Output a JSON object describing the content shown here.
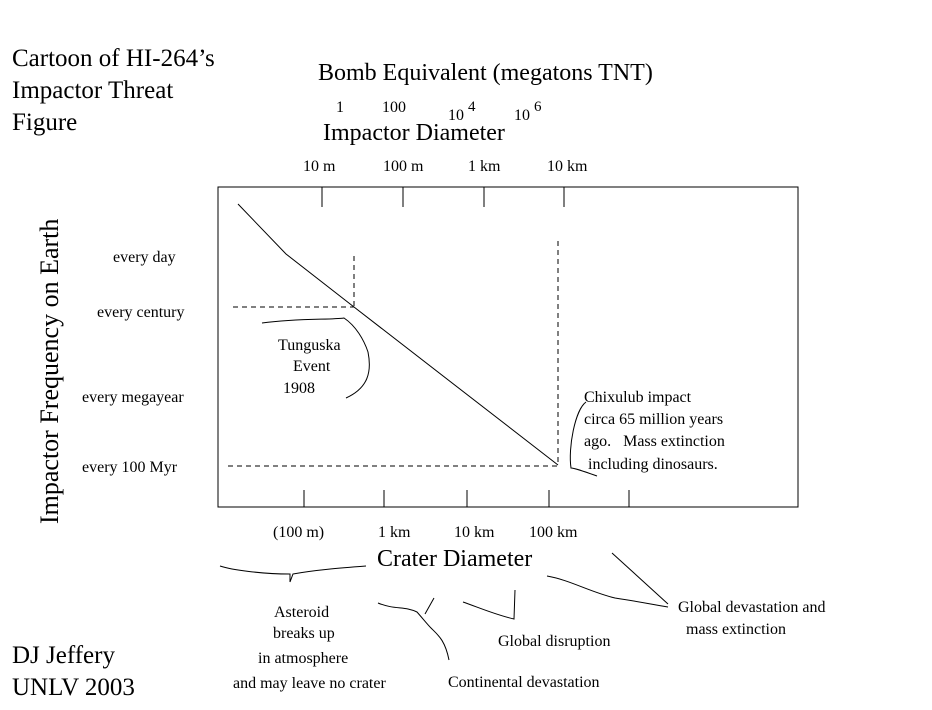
{
  "header": {
    "title_lines": [
      "Cartoon of HI-264’s",
      "Impactor Threat",
      "Figure"
    ]
  },
  "credit": {
    "line1": "DJ Jeffery",
    "line2": "UNLV 2003"
  },
  "axes": {
    "bomb_label": "Bomb Equivalent (megatons TNT)",
    "bomb_ticks": [
      {
        "base": "1",
        "exp": ""
      },
      {
        "base": "100",
        "exp": ""
      },
      {
        "base": "10",
        "exp": "4"
      },
      {
        "base": "10",
        "exp": "6"
      }
    ],
    "impactor_label": "Impactor Diameter",
    "impactor_ticks": [
      "10 m",
      "100 m",
      "1 km",
      "10 km"
    ],
    "frequency_label": "Impactor Frequency on Earth",
    "frequency_ticks": [
      "every day",
      "every century",
      "every megayear",
      "every 100 Myr"
    ],
    "crater_label": "Crater Diameter",
    "crater_ticks": [
      "(100 m)",
      "1 km",
      "10 km",
      "100 km"
    ]
  },
  "annotations": {
    "tunguska": [
      "Tunguska",
      "Event",
      "1908"
    ],
    "chixulub": [
      "Chixulub impact",
      "circa 65 million years",
      "ago.   Mass extinction",
      " including dinosaurs."
    ],
    "asteroid": [
      "Asteroid",
      "breaks up",
      "in atmosphere",
      "and may leave no crater"
    ],
    "global_disruption": "Global disruption",
    "continental": "Continental devastation",
    "global_devastation": [
      "Global devastation and",
      "  mass extinction"
    ]
  }
}
